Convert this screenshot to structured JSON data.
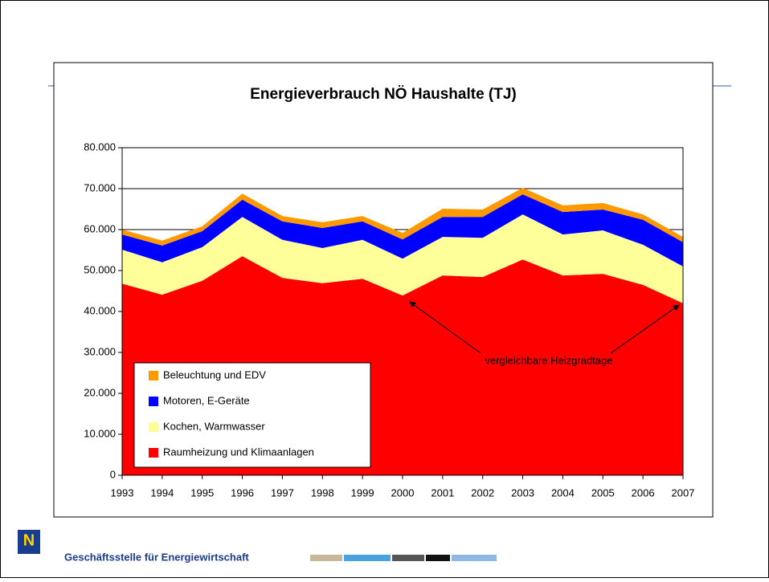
{
  "chart_data": {
    "type": "stacked-area",
    "title": "Energieverbrauch NÖ Haushalte (TJ)",
    "categories": [
      "1993",
      "1994",
      "1995",
      "1996",
      "1997",
      "1998",
      "1999",
      "2000",
      "2001",
      "2002",
      "2003",
      "2004",
      "2005",
      "2006",
      "2007"
    ],
    "series": [
      {
        "name": "Raumheizung und Klimaanlagen",
        "color": "#ff0000",
        "values": [
          46800,
          44100,
          47500,
          53500,
          48200,
          46900,
          48000,
          43900,
          48800,
          48400,
          52700,
          48800,
          49200,
          46500,
          42000
        ]
      },
      {
        "name": "Kochen, Warmwasser",
        "color": "#ffff99",
        "values": [
          8300,
          7900,
          8200,
          9600,
          9300,
          8600,
          9500,
          9000,
          9400,
          9600,
          11000,
          10000,
          10600,
          9800,
          9000
        ]
      },
      {
        "name": "Motoren, E-Geräte",
        "color": "#0000ff",
        "values": [
          3700,
          4100,
          3900,
          4200,
          4500,
          4900,
          4500,
          4700,
          4900,
          5100,
          4900,
          5500,
          5100,
          6100,
          5900
        ]
      },
      {
        "name": "Beleuchtung und EDV",
        "color": "#ff9900",
        "values": [
          1200,
          1200,
          1200,
          1500,
          1300,
          1400,
          1300,
          1600,
          2000,
          1800,
          1600,
          1600,
          1600,
          1300,
          1300
        ]
      }
    ],
    "ylim": [
      0,
      80000
    ],
    "yticks": [
      0,
      {
        "value": 10000,
        "label": "10.000"
      },
      {
        "value": 20000,
        "label": "20.000"
      },
      {
        "value": 30000,
        "label": "30.000"
      },
      {
        "value": 40000,
        "label": "40.000"
      },
      {
        "value": 50000,
        "label": "50.000"
      },
      {
        "value": 60000,
        "label": "60.000"
      },
      {
        "value": 70000,
        "label": "70.000"
      },
      {
        "value": 80000,
        "label": "80.000"
      }
    ],
    "grid": true,
    "annotation": "vergleichbare Heizgradtage"
  },
  "footer": {
    "text": "Geschäftsstelle für Energiewirtschaft",
    "logo": "N"
  }
}
